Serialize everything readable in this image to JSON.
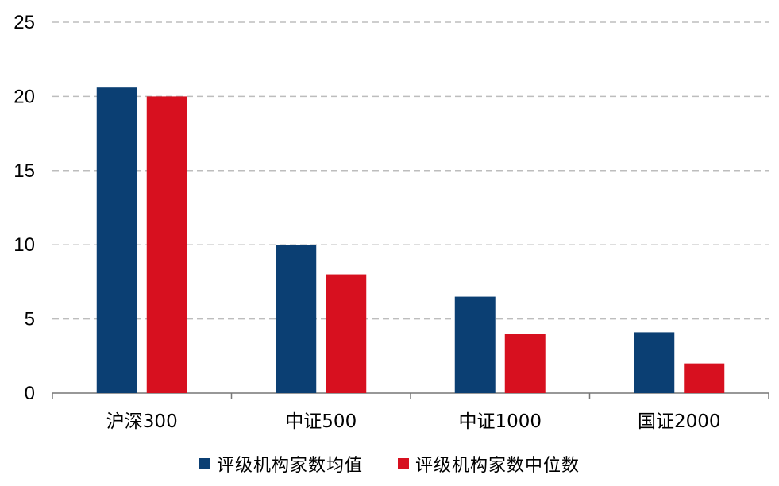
{
  "chart_data": {
    "type": "bar",
    "categories": [
      "沪深300",
      "中证500",
      "中证1000",
      "国证2000"
    ],
    "series": [
      {
        "name": "评级机构家数均值",
        "color": "#0b3f73",
        "values": [
          20.6,
          10.0,
          6.5,
          4.1
        ]
      },
      {
        "name": "评级机构家数中位数",
        "color": "#d7101f",
        "values": [
          20,
          8,
          4,
          2
        ]
      }
    ],
    "ylim": [
      0,
      25
    ],
    "yticks": [
      0,
      5,
      10,
      15,
      20,
      25
    ],
    "grid": true,
    "legend_position": "bottom"
  }
}
